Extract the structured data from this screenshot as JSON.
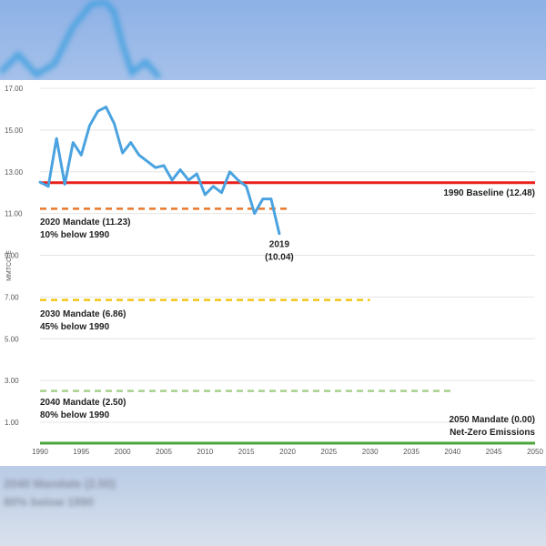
{
  "chart_data": {
    "type": "line",
    "ylabel": "MMTCO₂E",
    "xlim": [
      1990,
      2050
    ],
    "ylim": [
      0,
      17
    ],
    "y_ticks": [
      "1.00",
      "3.00",
      "5.00",
      "7.00",
      "9.00",
      "11.00",
      "13.00",
      "15.00",
      "17.00"
    ],
    "x_ticks": [
      "1990",
      "1995",
      "2000",
      "2005",
      "2010",
      "2015",
      "2020",
      "2025",
      "2030",
      "2035",
      "2040",
      "2045",
      "2050"
    ],
    "grid": true,
    "series": [
      {
        "color": "#4aa3e0",
        "x": [
          1990,
          1991,
          1992,
          1993,
          1994,
          1995,
          1996,
          1997,
          1998,
          1999,
          2000,
          2001,
          2002,
          2003,
          2004,
          2005,
          2006,
          2007,
          2008,
          2009,
          2010,
          2011,
          2012,
          2013,
          2014,
          2015,
          2016,
          2017,
          2018,
          2019
        ],
        "values": [
          12.5,
          12.3,
          14.6,
          12.4,
          14.4,
          13.8,
          15.2,
          15.9,
          16.1,
          15.3,
          13.9,
          14.4,
          13.8,
          13.5,
          13.2,
          13.3,
          12.6,
          13.1,
          12.6,
          12.9,
          11.9,
          12.3,
          12.0,
          13.0,
          12.6,
          12.3,
          11.0,
          11.7,
          11.7,
          10.04
        ]
      }
    ],
    "reference_lines": [
      {
        "value": 12.48,
        "x_start": 1990,
        "x_end": 2050,
        "color": "#e8201b",
        "style": "solid",
        "labels": [
          "1990 Baseline (12.48)"
        ]
      },
      {
        "value": 11.23,
        "x_start": 1990,
        "x_end": 2020,
        "color": "#e8782a",
        "style": "dashed",
        "labels": [
          "2020 Mandate (11.23)",
          "10% below 1990"
        ]
      },
      {
        "value": 6.86,
        "x_start": 1990,
        "x_end": 2030,
        "color": "#f2c417",
        "style": "dashed",
        "labels": [
          "2030 Mandate (6.86)",
          "45% below 1990"
        ]
      },
      {
        "value": 2.5,
        "x_start": 1990,
        "x_end": 2040,
        "color": "#a6d08c",
        "style": "dashed",
        "labels": [
          "2040 Mandate (2.50)",
          "80% below 1990"
        ]
      },
      {
        "value": 0.0,
        "x_start": 1990,
        "x_end": 2050,
        "color": "#4aa53a",
        "style": "solid",
        "labels": [
          "2050 Mandate (0.00)",
          "Net-Zero Emissions"
        ]
      }
    ],
    "annotations": [
      {
        "x": 2019,
        "y": 10.04,
        "labels": [
          "2019",
          "(10.04)"
        ]
      }
    ]
  },
  "background_captions": [
    "2040 Mandate (2.50)",
    "80% below 1990"
  ]
}
